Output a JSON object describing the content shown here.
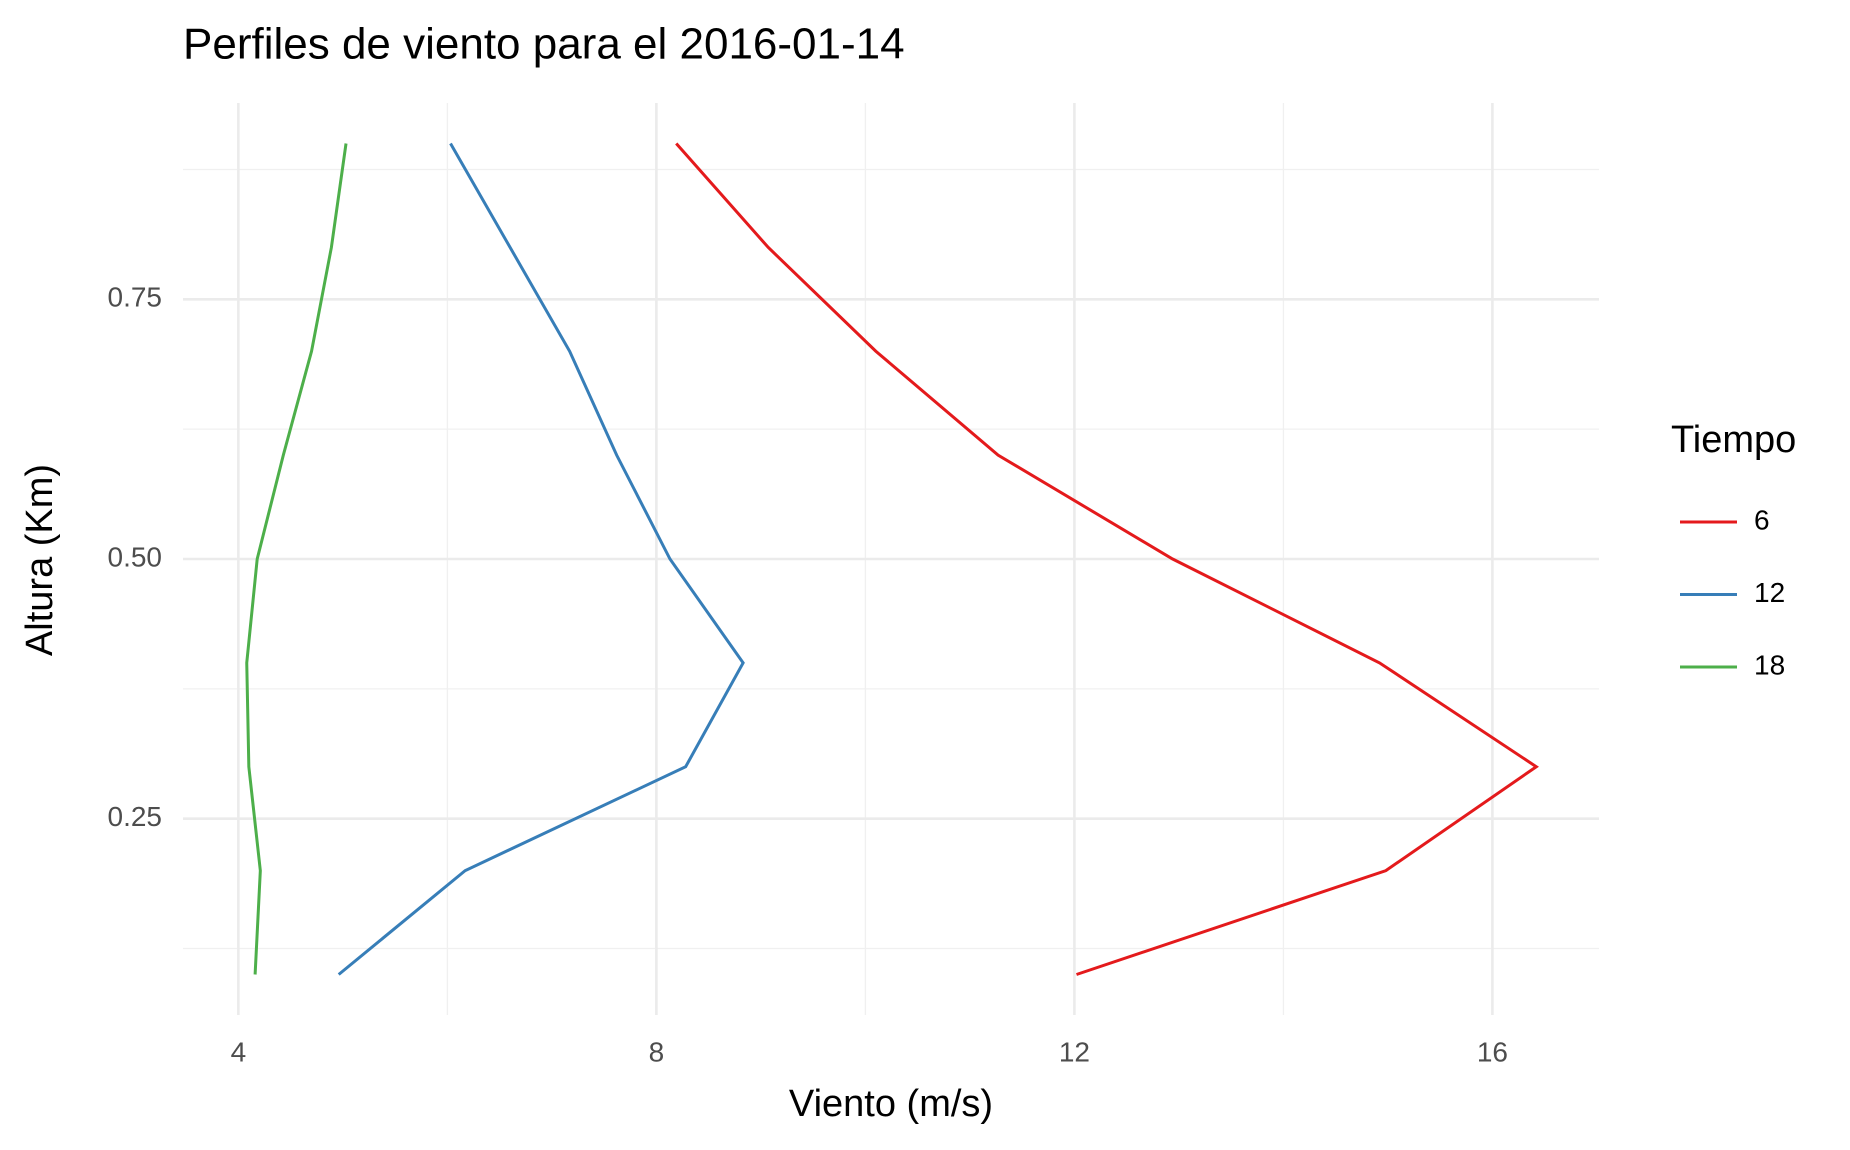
{
  "chart_data": {
    "type": "line",
    "title": "Perfiles de viento para el 2016-01-14",
    "x_label": "Viento (m/s)",
    "y_label": "Altura (Km)",
    "legend_title": "Tiempo",
    "y": [
      0.1,
      0.2,
      0.3,
      0.4,
      0.5,
      0.6,
      0.7,
      0.8,
      0.9
    ],
    "series": [
      {
        "name": "6",
        "color": "#e41a1c",
        "x": [
          12.02,
          14.98,
          16.42,
          14.92,
          12.94,
          11.27,
          10.1,
          9.07,
          8.19
        ]
      },
      {
        "name": "12",
        "color": "#377eb8",
        "x": [
          4.96,
          6.17,
          8.28,
          8.83,
          8.13,
          7.62,
          7.17,
          6.6,
          6.03
        ]
      },
      {
        "name": "18",
        "color": "#4daf4a",
        "x": [
          4.16,
          4.21,
          4.1,
          4.08,
          4.18,
          4.43,
          4.7,
          4.89,
          5.03
        ]
      }
    ],
    "xlim": [
      3.47,
      17.02
    ],
    "ylim": [
      0.061,
      0.939
    ],
    "xticks": [
      4,
      8,
      12,
      16
    ],
    "yticks": [
      0.25,
      {
        "value": 0.5,
        "label": "0.50"
      },
      0.75
    ],
    "grid": true,
    "legend": "right"
  }
}
